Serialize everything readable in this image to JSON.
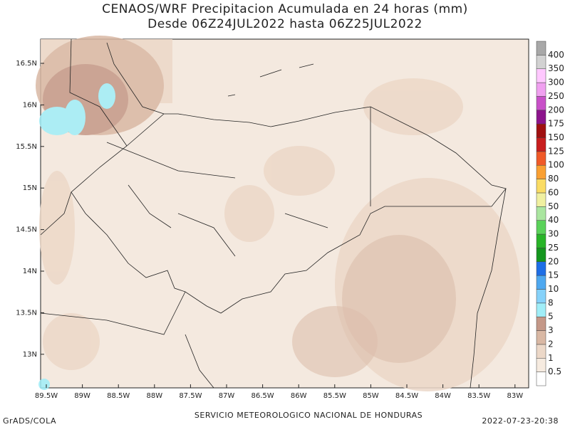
{
  "title": [
    "CENAOS/WRF Precipitacion Acumulada en 24 horas (mm)",
    "Desde 06Z24JUL2022 hasta 06Z25JUL2022"
  ],
  "map": {
    "lat_labels": [
      "16.5N",
      "16N",
      "15.5N",
      "15N",
      "14.5N",
      "14N",
      "13.5N",
      "13N"
    ],
    "lon_labels": [
      "89.5W",
      "89W",
      "88.5W",
      "88W",
      "87.5W",
      "87W",
      "86.5W",
      "86W",
      "85.5W",
      "85W",
      "84.5W",
      "84W",
      "83.5W",
      "83W"
    ]
  },
  "colorbar": {
    "levels": [
      0.5,
      1,
      2,
      3,
      5,
      8,
      10,
      15,
      20,
      25,
      30,
      40,
      50,
      60,
      80,
      100,
      125,
      150,
      175,
      200,
      250,
      300,
      350,
      400
    ],
    "colors": [
      "#ffffff",
      "#f6ebe0",
      "#ecd8c8",
      "#d9b8a4",
      "#c49888",
      "#a0eef8",
      "#86d2fa",
      "#4ea8f0",
      "#1e6ee6",
      "#14961e",
      "#28b428",
      "#5ad25a",
      "#aae6a0",
      "#f0f0a0",
      "#fadc64",
      "#faa032",
      "#f05a28",
      "#c81e1e",
      "#a01010",
      "#8c148c",
      "#c850c8",
      "#f0a0f0",
      "#ffc8ff",
      "#d2d2d2",
      "#a8a8a8"
    ]
  },
  "footer": {
    "left": "GrADS/COLA",
    "center": "SERVICIO METEOROLOGICO NACIONAL DE HONDURAS",
    "right": "2022-07-23-20:38"
  }
}
